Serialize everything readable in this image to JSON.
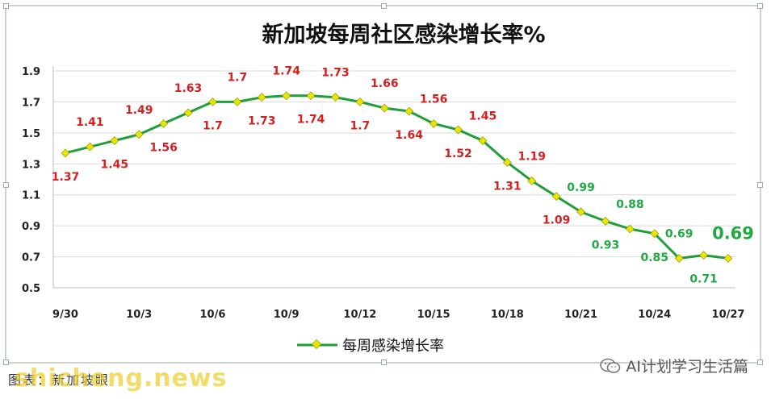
{
  "footer": {
    "source_label": "图表：新加坡眼",
    "watermark": "shicheng.news",
    "account_name": "AI计划学习生活篇"
  },
  "colors": {
    "line": "#1f9e3a",
    "marker": "#e6e600",
    "label_red": "#d42020",
    "label_green": "#22a845",
    "grid": "#d9d9d9"
  },
  "chart_data": {
    "type": "line",
    "title": "新加坡每周社区感染增长率%",
    "xlabel": "",
    "ylabel": "",
    "ylim": [
      0.5,
      1.9
    ],
    "yticks": [
      "0.5",
      "0.7",
      "0.9",
      "1.1",
      "1.3",
      "1.5",
      "1.7",
      "1.9"
    ],
    "grid": true,
    "legend_position": "bottom-center",
    "x_tick_labels": [
      "9/30",
      "10/3",
      "10/6",
      "10/9",
      "10/12",
      "10/15",
      "10/18",
      "10/21",
      "10/24",
      "10/27"
    ],
    "x": [
      "9/30",
      "10/1",
      "10/2",
      "10/3",
      "10/4",
      "10/5",
      "10/6",
      "10/7",
      "10/8",
      "10/9",
      "10/10",
      "10/11",
      "10/12",
      "10/13",
      "10/14",
      "10/15",
      "10/16",
      "10/17",
      "10/18",
      "10/19",
      "10/20",
      "10/21",
      "10/22",
      "10/23",
      "10/24",
      "10/25",
      "10/26",
      "10/27"
    ],
    "series": [
      {
        "name": "每周感染增长率",
        "values": [
          1.37,
          1.41,
          1.45,
          1.49,
          1.56,
          1.63,
          1.7,
          1.7,
          1.73,
          1.74,
          1.74,
          1.73,
          1.7,
          1.66,
          1.64,
          1.56,
          1.52,
          1.45,
          1.31,
          1.19,
          1.09,
          0.99,
          0.93,
          0.88,
          0.85,
          0.69,
          0.71,
          0.69
        ],
        "labels": [
          "1.37",
          "1.41",
          "1.45",
          "1.49",
          "1.56",
          "1.63",
          "1.7",
          "1.7",
          "1.73",
          "1.74",
          "1.74",
          "1.73",
          "1.7",
          "1.66",
          "1.64",
          "1.56",
          "1.52",
          "1.45",
          "1.31",
          "1.19",
          "1.09",
          "0.99",
          "0.93",
          "0.88",
          "0.85",
          "0.69",
          "0.71",
          "0.69"
        ]
      }
    ]
  }
}
